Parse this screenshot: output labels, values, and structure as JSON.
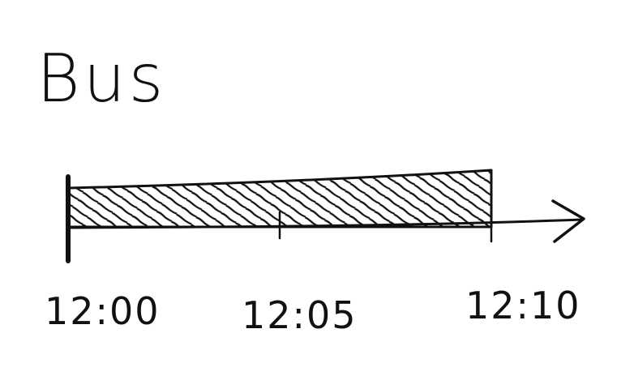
{
  "title": "Bus",
  "timeline": {
    "ticks": [
      "12:00",
      "12:05",
      "12:10"
    ],
    "bar": {
      "start": "12:00",
      "end": "12:10",
      "fill": "hatched"
    }
  },
  "colors": {
    "ink": "#111111",
    "background": "#ffffff"
  }
}
